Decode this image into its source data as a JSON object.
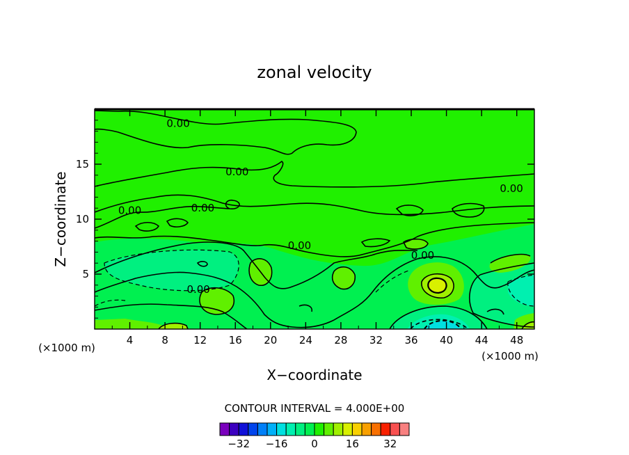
{
  "chart_data": {
    "type": "heatmap",
    "title": "zonal velocity",
    "xlabel": "X−coordinate",
    "ylabel": "Z−coordinate",
    "x_units_left": "(×1000 m)",
    "x_units_right": "(×1000 m)",
    "xlim": [
      0,
      50
    ],
    "ylim": [
      0,
      20
    ],
    "x_ticks": [
      4,
      8,
      12,
      16,
      20,
      24,
      28,
      32,
      36,
      40,
      44,
      48
    ],
    "y_ticks": [
      5,
      10,
      15
    ],
    "contour_interval_text": "CONTOUR INTERVAL = 4.000E+00",
    "contour_labels": [
      {
        "text": "0.00",
        "x": 9.5,
        "y": 18.7
      },
      {
        "text": "0.00",
        "x": 16.2,
        "y": 14.3
      },
      {
        "text": "0.00",
        "x": 47.4,
        "y": 12.8
      },
      {
        "text": "0.00",
        "x": 4.0,
        "y": 10.8
      },
      {
        "text": "0.00",
        "x": 12.3,
        "y": 11.0
      },
      {
        "text": "0.00",
        "x": 23.3,
        "y": 7.6
      },
      {
        "text": "0.00",
        "x": 37.3,
        "y": 6.7
      },
      {
        "text": "0.00",
        "x": 11.8,
        "y": 3.6
      }
    ],
    "features": [
      {
        "kind": "max",
        "x": 38.8,
        "y": 4.1,
        "value": 12
      },
      {
        "kind": "min",
        "x": 38.8,
        "y": 0.4,
        "value": -12
      },
      {
        "kind": "min",
        "x": 48.8,
        "y": 3.3,
        "value": -8
      },
      {
        "kind": "min",
        "x": 8.5,
        "y": 5.2,
        "value": -4
      },
      {
        "kind": "max",
        "x": 14.5,
        "y": 2.9,
        "value": 4
      },
      {
        "kind": "max",
        "x": 19.0,
        "y": 5.4,
        "value": 4
      },
      {
        "kind": "max",
        "x": 28.5,
        "y": 4.6,
        "value": 4
      },
      {
        "kind": "max",
        "x": 47.5,
        "y": 6.0,
        "value": 4
      }
    ],
    "colorbar": {
      "levels": [
        -40,
        -36,
        -32,
        -28,
        -24,
        -20,
        -16,
        -12,
        -8,
        -4,
        0,
        4,
        8,
        12,
        16,
        20,
        24,
        28,
        32,
        36,
        40
      ],
      "colors": [
        "#7a00bd",
        "#3c00c0",
        "#1010d8",
        "#0044ec",
        "#0080f8",
        "#00b0f8",
        "#00e0e0",
        "#00f0b0",
        "#00f080",
        "#00f050",
        "#20f000",
        "#60f000",
        "#a0f000",
        "#d8f000",
        "#f8d000",
        "#f8a000",
        "#f87000",
        "#f82000",
        "#f85050",
        "#f88080"
      ],
      "tick_labels": [
        "−32",
        "−16",
        "0",
        "16",
        "32"
      ],
      "tick_values": [
        -32,
        -16,
        0,
        16,
        32
      ]
    }
  }
}
